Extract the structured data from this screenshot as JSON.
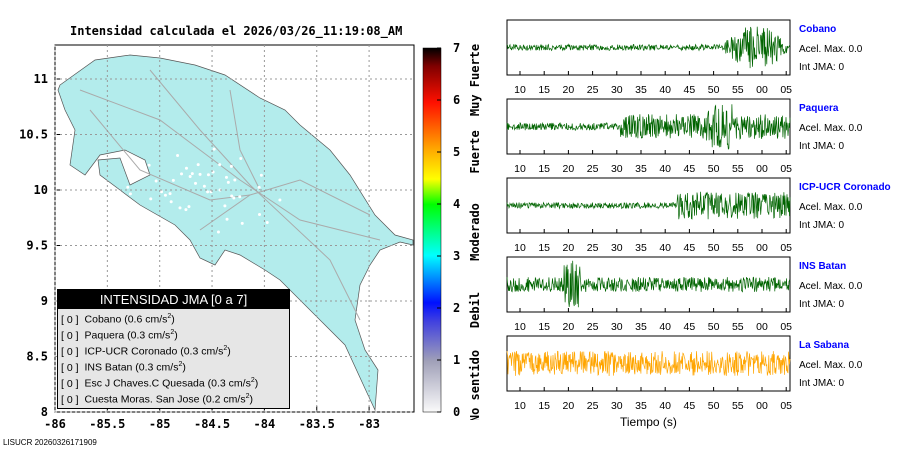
{
  "title": "Intensidad calculada el 2026/03/26_11:19:08_AM",
  "footer": "LISUCR 20260326171909",
  "map": {
    "x_ticks": [
      "-86",
      "-85.5",
      "-85",
      "-84.5",
      "-84",
      "-83.5",
      "-83"
    ],
    "y_ticks": [
      "11",
      "10.5",
      "10",
      "9.5",
      "9",
      "8.5",
      "8"
    ],
    "land_color": "#b3ecec"
  },
  "legend": {
    "title": "INTENSIDAD JMA [0 a 7]",
    "items": [
      {
        "int": "[ 0 ]",
        "name": "Cobano (0.6 cm/s",
        "sup": "2",
        "end": ")"
      },
      {
        "int": "[ 0 ]",
        "name": "Paquera (0.3 cm/s",
        "sup": "2",
        "end": ")"
      },
      {
        "int": "[ 0 ]",
        "name": "ICP-UCR Coronado (0.3 cm/s",
        "sup": "2",
        "end": ")"
      },
      {
        "int": "[ 0 ]",
        "name": "INS Batan (0.3 cm/s",
        "sup": "2",
        "end": ")"
      },
      {
        "int": "[ 0 ]",
        "name": "Esc J Chaves.C Quesada (0.3 cm/s",
        "sup": "2",
        "end": ")"
      },
      {
        "int": "[ 0 ]",
        "name": "Cuesta Moras. San Jose (0.2 cm/s",
        "sup": "2",
        "end": ")"
      }
    ]
  },
  "colorbar": {
    "ticks": [
      "0",
      "1",
      "2",
      "3",
      "4",
      "5",
      "6",
      "7"
    ],
    "labels": [
      "No sentido",
      "Debil",
      "Moderado",
      "Fuerte",
      "Muy Fuerte"
    ]
  },
  "traces": {
    "time_ticks": [
      "10",
      "15",
      "20",
      "25",
      "30",
      "35",
      "40",
      "45",
      "50",
      "55",
      "00",
      "05"
    ],
    "xlabel": "Tiempo (s)",
    "stations": [
      {
        "name": "Cobano",
        "acel": "Acel. Max. 0.0",
        "int": "Int JMA: 0",
        "color": "#006400"
      },
      {
        "name": "Paquera",
        "acel": "Acel. Max. 0.0",
        "int": "Int JMA: 0",
        "color": "#006400"
      },
      {
        "name": "ICP-UCR Coronado",
        "acel": "Acel. Max. 0.0",
        "int": "Int JMA: 0",
        "color": "#006400"
      },
      {
        "name": "INS Batan",
        "acel": "Acel. Max. 0.0",
        "int": "Int JMA: 0",
        "color": "#006400"
      },
      {
        "name": "La Sabana",
        "acel": "Acel. Max. 0.0",
        "int": "Int JMA: 0",
        "color": "#ffa500"
      }
    ]
  }
}
